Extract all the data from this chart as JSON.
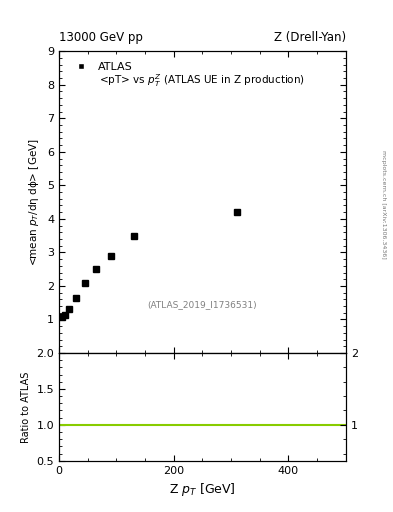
{
  "title_left": "13000 GeV pp",
  "title_right": "Z (Drell-Yan)",
  "plot_title": "<pT> vs $p_T^Z$ (ATLAS UE in Z production)",
  "watermark": "(ATLAS_2019_I1736531)",
  "legend_label": "ATLAS",
  "xlabel": "Z $p_T$ [GeV]",
  "ylabel": "<mean $p_T$/dη dϕ> [GeV]",
  "ylabel_ratio": "Ratio to ATLAS",
  "x_data": [
    5,
    10,
    18,
    30,
    45,
    65,
    90,
    130,
    310
  ],
  "y_data": [
    1.08,
    1.12,
    1.3,
    1.65,
    2.1,
    2.5,
    2.9,
    3.5,
    4.2
  ],
  "xlim": [
    0,
    500
  ],
  "ylim_main": [
    0,
    9
  ],
  "ylim_ratio": [
    0.5,
    2.0
  ],
  "yticks_main": [
    1,
    2,
    3,
    4,
    5,
    6,
    7,
    8,
    9
  ],
  "yticks_ratio": [
    0.5,
    1.0,
    1.5,
    2.0
  ],
  "xticks": [
    0,
    200,
    400
  ],
  "ratio_line_y": 1.0,
  "ratio_line_color": "#88cc00",
  "marker_color": "black",
  "marker": "s",
  "marker_size": 5,
  "side_label": "mcplots.cern.ch [arXiv:1306.3436]",
  "background_color": "white"
}
